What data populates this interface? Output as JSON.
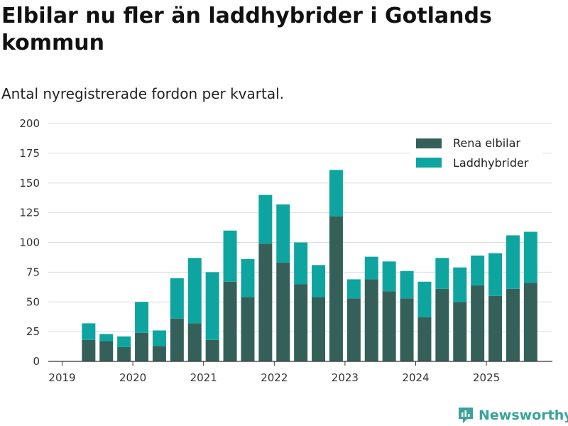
{
  "title": "Elbilar nu fler än laddhybrider i Gotlands kommun",
  "subtitle": "Antal nyregistrerade fordon per kvartal.",
  "brand": "Newsworthy",
  "colors": {
    "electric": "#35605a",
    "hybrid": "#0ea5a0",
    "grid": "#dddddd",
    "brand": "#3aa39a"
  },
  "chart_data": {
    "type": "bar",
    "stacked": true,
    "title": "Elbilar nu fler än laddhybrider i Gotlands kommun",
    "subtitle": "Antal nyregistrerade fordon per kvartal.",
    "x_ticks": [
      "2019",
      "2020",
      "2021",
      "2022",
      "2023",
      "2024",
      "2025"
    ],
    "y_ticks": [
      0,
      25,
      50,
      75,
      100,
      125,
      150,
      175,
      200
    ],
    "ylim": [
      0,
      200
    ],
    "legend_position": "top-right",
    "categories": [
      "2019 Q2",
      "2019 Q3",
      "2019 Q4",
      "2020 Q1",
      "2020 Q2",
      "2020 Q3",
      "2020 Q4",
      "2021 Q1",
      "2021 Q2",
      "2021 Q3",
      "2021 Q4",
      "2022 Q1",
      "2022 Q2",
      "2022 Q3",
      "2022 Q4",
      "2023 Q1",
      "2023 Q2",
      "2023 Q3",
      "2023 Q4",
      "2024 Q1",
      "2024 Q2",
      "2024 Q3",
      "2024 Q4",
      "2025 Q1",
      "2025 Q2",
      "2025 Q3"
    ],
    "series": [
      {
        "name": "Rena elbilar",
        "color": "#35605a",
        "values": [
          18,
          17,
          12,
          24,
          13,
          36,
          32,
          18,
          67,
          54,
          99,
          83,
          65,
          54,
          122,
          53,
          69,
          59,
          53,
          37,
          61,
          50,
          64,
          55,
          61,
          66
        ]
      },
      {
        "name": "Laddhybrider",
        "color": "#0ea5a0",
        "values": [
          14,
          6,
          9,
          26,
          13,
          34,
          55,
          57,
          43,
          32,
          41,
          49,
          35,
          27,
          39,
          16,
          19,
          25,
          23,
          30,
          26,
          29,
          25,
          36,
          45,
          43
        ]
      }
    ]
  }
}
